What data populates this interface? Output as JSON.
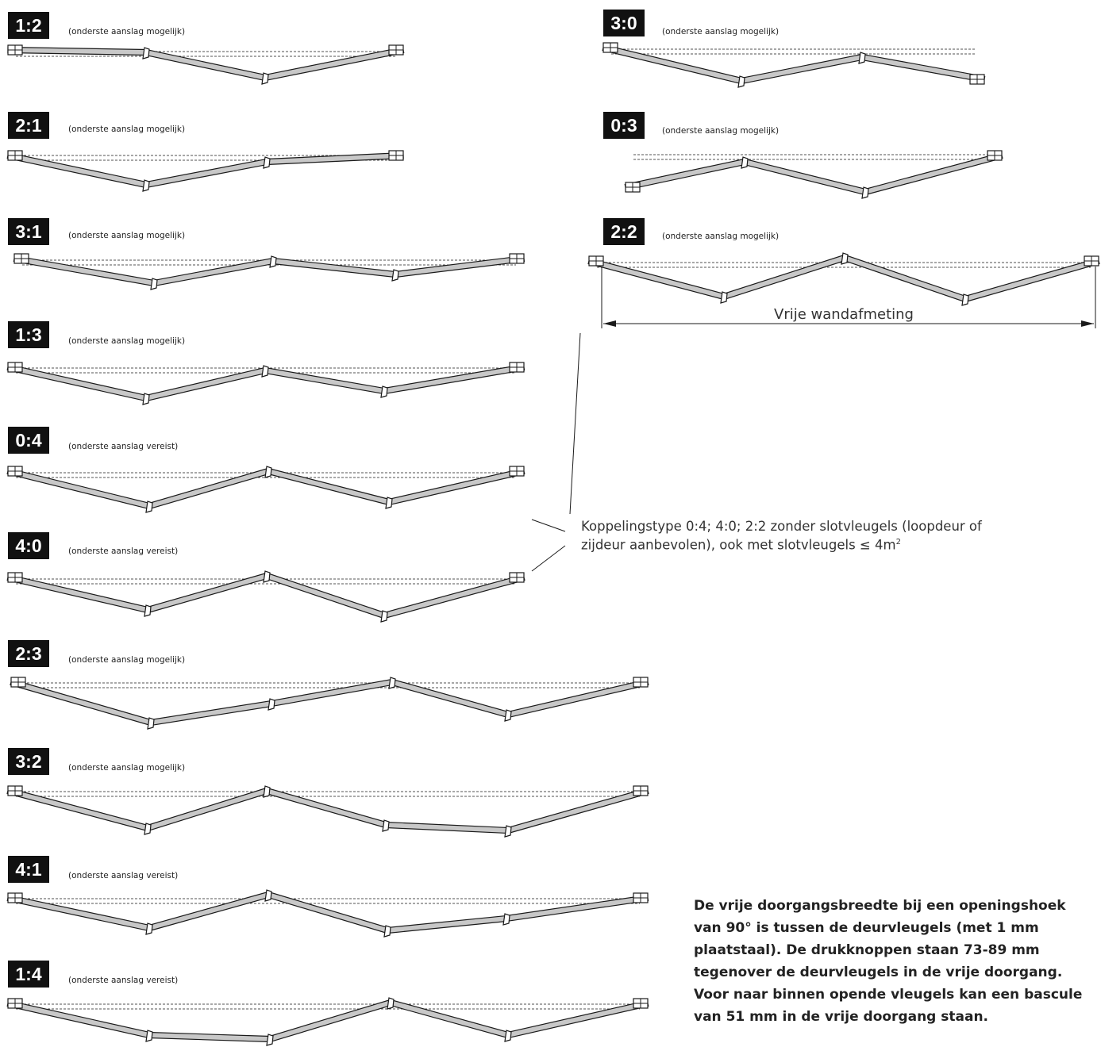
{
  "diagrams": [
    {
      "id": "1:2",
      "label": "1:2",
      "note": "(onderste aanslag mogelijk)"
    },
    {
      "id": "2:1",
      "label": "2:1",
      "note": "(onderste aanslag mogelijk)"
    },
    {
      "id": "3:1",
      "label": "3:1",
      "note": "(onderste aanslag mogelijk)"
    },
    {
      "id": "1:3",
      "label": "1:3",
      "note": "(onderste aanslag mogelijk)"
    },
    {
      "id": "0:4",
      "label": "0:4",
      "note": "(onderste aanslag vereist)"
    },
    {
      "id": "4:0",
      "label": "4:0",
      "note": "(onderste aanslag vereist)"
    },
    {
      "id": "2:3",
      "label": "2:3",
      "note": "(onderste aanslag mogelijk)"
    },
    {
      "id": "3:2",
      "label": "3:2",
      "note": "(onderste aanslag mogelijk)"
    },
    {
      "id": "4:1",
      "label": "4:1",
      "note": "(onderste aanslag vereist)"
    },
    {
      "id": "1:4",
      "label": "1:4",
      "note": "(onderste aanslag vereist)"
    },
    {
      "id": "3:0",
      "label": "3:0",
      "note": "(onderste aanslag mogelijk)"
    },
    {
      "id": "0:3",
      "label": "0:3",
      "note": "(onderste aanslag mogelijk)"
    },
    {
      "id": "2:2",
      "label": "2:2",
      "note": "(onderste aanslag mogelijk)"
    }
  ],
  "dimension_label": "Vrije wandafmeting",
  "leader_note": {
    "line1": "Koppelingstype 0:4; 4:0; 2:2 zonder slotvleugels (loopdeur of",
    "line2": "zijdeur aanbevolen), ook met slotvleugels ≤ 4m",
    "superscript": "2"
  },
  "description": "De vrije doorgangsbreedte bij een openingshoek van 90° is tussen de deurvleugels (met 1 mm plaatstaal). De drukknoppen staan 73-89 mm tegenover de deurvleugels in de vrije doorgang. Voor naar binnen opende vleugels kan een bascule van 51 mm in de vrije doorgang staan.",
  "colors": {
    "panel_fill": "#c8c8c8",
    "stroke": "#1a1a1a",
    "badge": "#111111"
  }
}
